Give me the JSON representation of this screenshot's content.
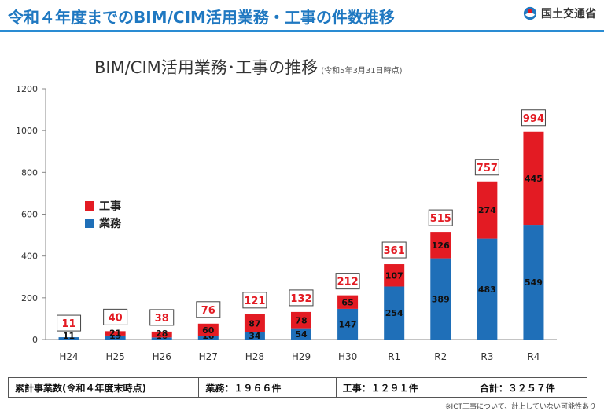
{
  "header": {
    "title": "令和４年度までのBIM/CIM活用業務・工事の件数推移",
    "ministry": "国土交通省"
  },
  "chart_title": {
    "main": "BIM/CIM活用業務･工事の推移",
    "note": "(令和5年3月31日時点)"
  },
  "chart_data": {
    "type": "bar",
    "stacked": true,
    "categories": [
      "H24",
      "H25",
      "H26",
      "H27",
      "H28",
      "H29",
      "H30",
      "R1",
      "R2",
      "R3",
      "R4"
    ],
    "series": [
      {
        "name": "業務",
        "color": "#1f6fb8",
        "values": [
          11,
          19,
          10,
          16,
          34,
          54,
          147,
          254,
          389,
          483,
          549
        ],
        "labels": [
          "11",
          "19",
          "10",
          "16",
          "34",
          "54",
          "147",
          "254",
          "389",
          "483",
          "549"
        ]
      },
      {
        "name": "工事",
        "color": "#e31b23",
        "values": [
          0,
          21,
          28,
          60,
          87,
          78,
          65,
          107,
          126,
          274,
          445
        ],
        "labels": [
          "",
          "21",
          "28",
          "60",
          "87",
          "78",
          "65",
          "107",
          "126",
          "274",
          "445"
        ]
      }
    ],
    "totals": [
      11,
      40,
      38,
      76,
      121,
      132,
      212,
      361,
      515,
      757,
      994
    ],
    "total_labels": [
      "11",
      "40",
      "38",
      "76",
      "121",
      "132",
      "212",
      "361",
      "515",
      "757",
      "994"
    ],
    "ylim": [
      0,
      1200
    ],
    "yticks": [
      "0",
      "200",
      "400",
      "600",
      "800",
      "1000",
      "1200"
    ],
    "ytick_values": [
      0,
      200,
      400,
      600,
      800,
      1000,
      1200
    ],
    "legend": [
      {
        "name": "工事",
        "color": "#e31b23"
      },
      {
        "name": "業務",
        "color": "#1f6fb8"
      }
    ],
    "legend_position": "left",
    "grid": false
  },
  "summary": {
    "label": "累計事業数(令和４年度末時点)",
    "gyomu": "業務：１９６６件",
    "koji": "工事：１２９１件",
    "total": "合計：３２５７件"
  },
  "footnote": "※ICT工事について、計上していない可能性あり"
}
